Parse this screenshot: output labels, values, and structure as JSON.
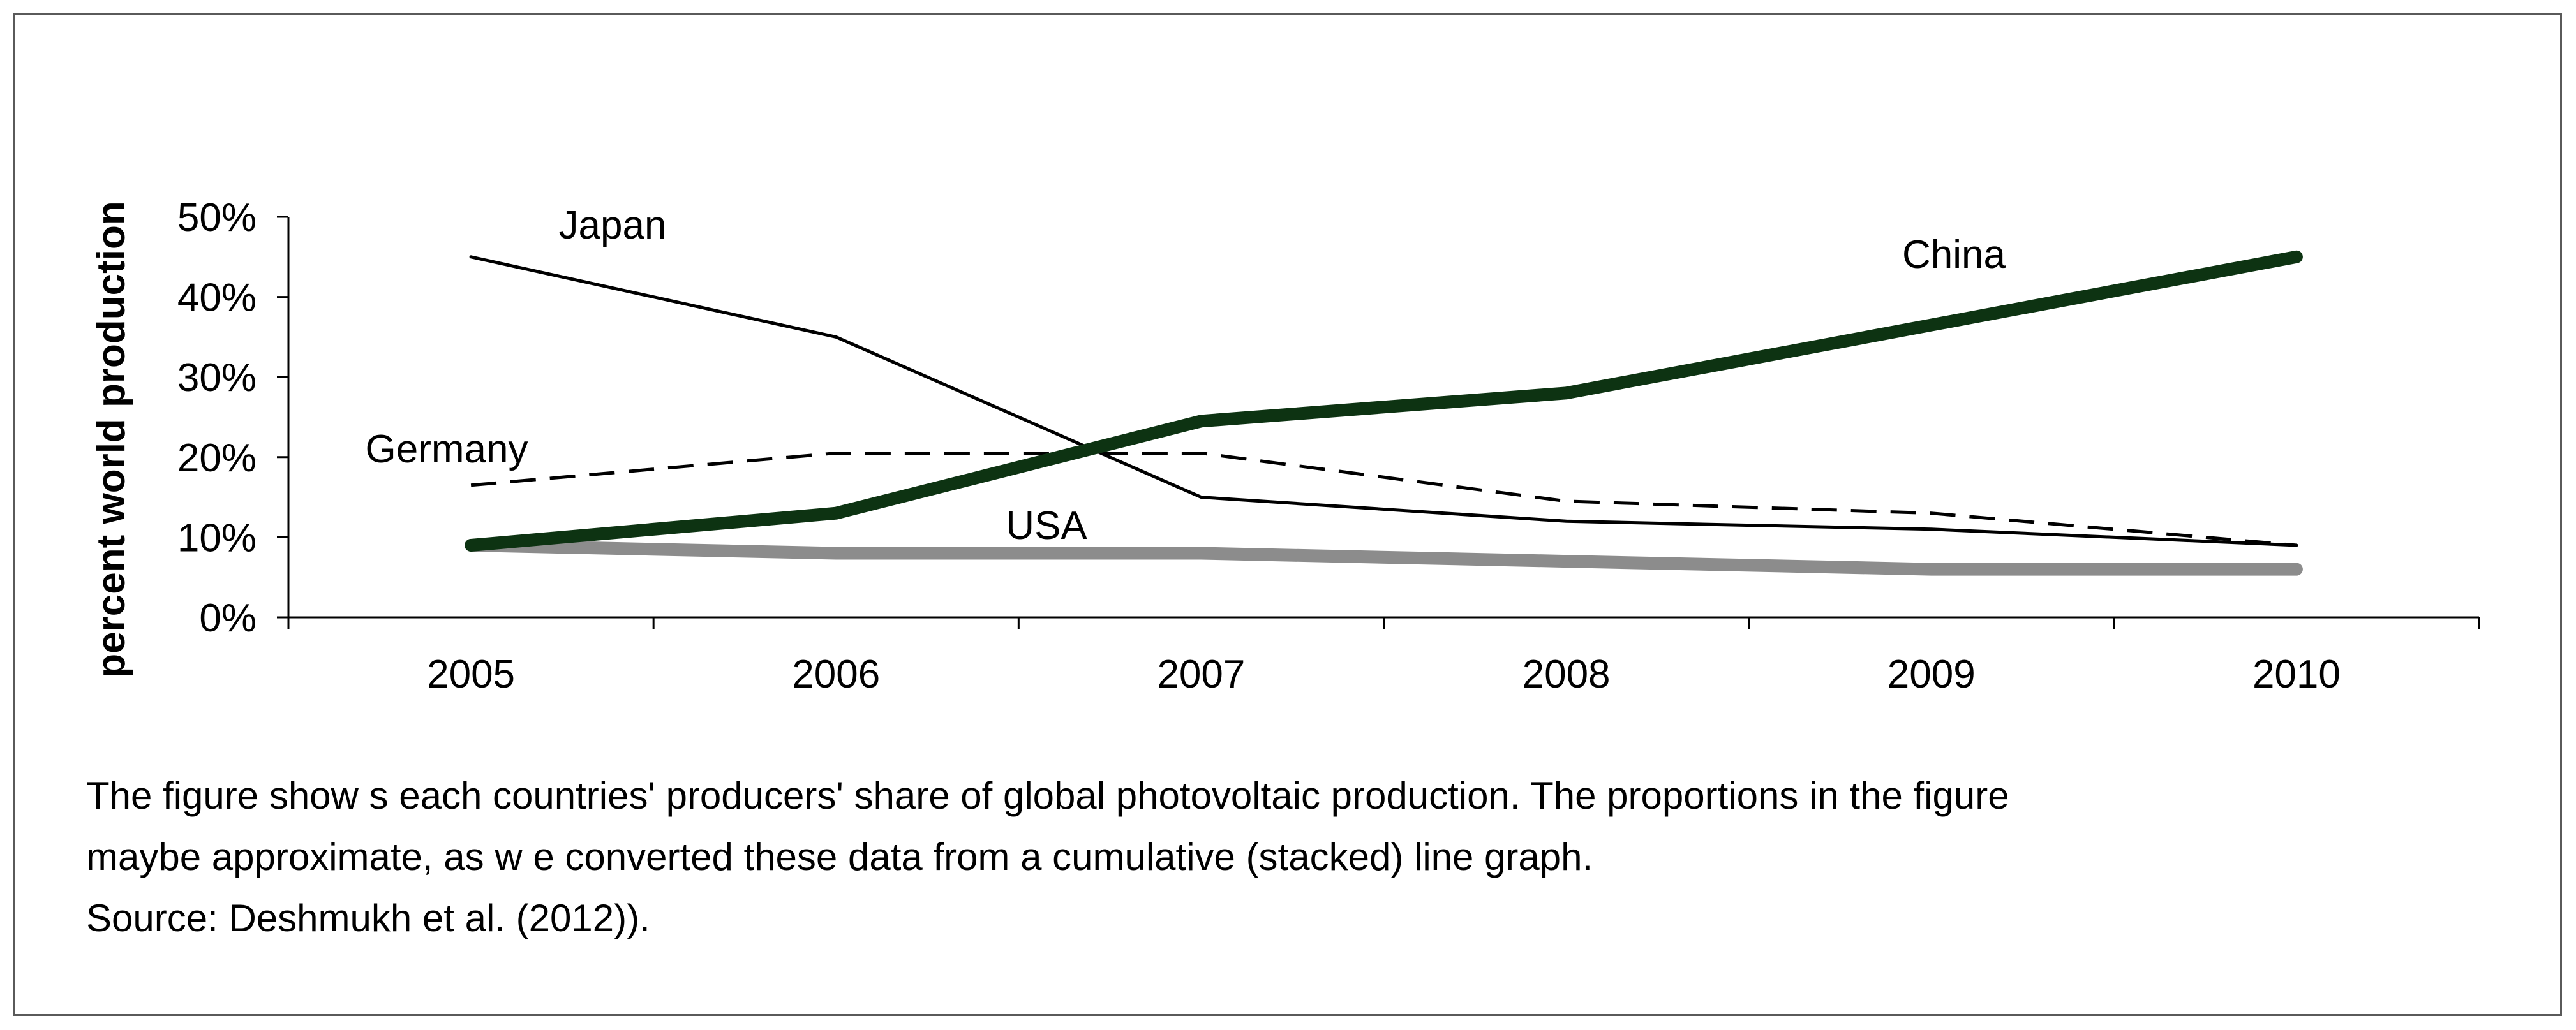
{
  "chart_data": {
    "type": "line",
    "title": "",
    "xlabel": "",
    "ylabel": "percent world production",
    "ylim": [
      0,
      50
    ],
    "yticks": [
      "0%",
      "10%",
      "20%",
      "30%",
      "40%",
      "50%"
    ],
    "categories": [
      "2005",
      "2006",
      "2007",
      "2008",
      "2009",
      "2010"
    ],
    "series": [
      {
        "name": "Japan",
        "values": [
          45,
          35,
          15,
          12,
          11,
          9
        ],
        "style": "solid-thin",
        "color": "#000000"
      },
      {
        "name": "China",
        "values": [
          9,
          13,
          24.5,
          28,
          36.5,
          45
        ],
        "style": "solid-thick",
        "color": "#0d3312"
      },
      {
        "name": "Germany",
        "values": [
          16.5,
          20.5,
          20.5,
          14.5,
          13,
          9
        ],
        "style": "dashed",
        "color": "#000000"
      },
      {
        "name": "USA",
        "values": [
          9,
          8,
          8,
          7,
          6,
          6
        ],
        "style": "solid-gray",
        "color": "#8c8c8c"
      }
    ]
  },
  "caption": {
    "line1": "The figure show s each countries' producers' share of global photovoltaic production. The proportions in the figure",
    "line2": "maybe approximate, as w e converted these data from a cumulative (stacked) line graph.",
    "line3": "Source: Deshmukh et al. (2012))."
  }
}
